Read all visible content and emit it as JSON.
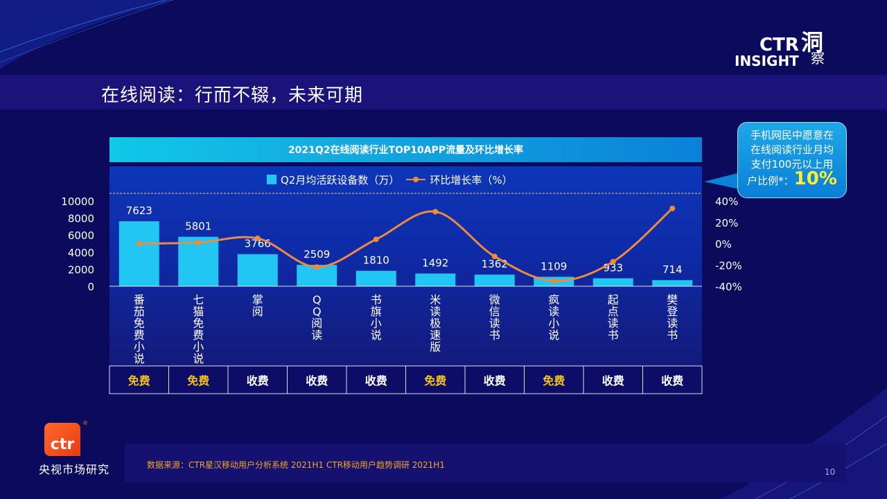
{
  "slide": {
    "title": "在线阅读：行而不辍，未来可期",
    "page_number": "10",
    "source": "数据来源：CTR星汉移动用户分析系统 2021H1    CTR移动用户趋势调研 2021H1"
  },
  "brand": {
    "ctr": "CTR",
    "insight": "INSIGHT",
    "dong": "洞",
    "cha": "察"
  },
  "logo": {
    "mark": "ctr",
    "name": "央视市场研究",
    "reg": "®"
  },
  "callout": {
    "line1": "手机网民中愿意在",
    "line2": "在线阅读行业月均",
    "line3": "支付100元以上用",
    "line4": "户比例*：",
    "value": "10%"
  },
  "chart_data": {
    "type": "bar",
    "title": "2021Q2在线阅读行业TOP10APP流量及环比增长率",
    "categories": [
      "番茄免费小说",
      "七猫免费小说",
      "掌阅",
      "QQ阅读",
      "书旗小说",
      "米读极速版",
      "微信读书",
      "疯读小说",
      "起点读书",
      "樊登读书"
    ],
    "series": [
      {
        "name": "Q2月均活跃设备数（万）",
        "type": "bar",
        "axis": "left",
        "color": "#21c6f3",
        "values": [
          7623,
          5801,
          3766,
          2509,
          1810,
          1492,
          1362,
          1109,
          933,
          714
        ]
      },
      {
        "name": "环比增长率（%）",
        "type": "line",
        "axis": "right",
        "color": "#f08a3c",
        "smooth": true,
        "values": [
          0,
          1,
          5,
          -22,
          4,
          30,
          -12,
          -35,
          -17,
          33
        ]
      }
    ],
    "y_left": {
      "min": 0,
      "max": 10000,
      "ticks": [
        "0",
        "2000",
        "4000",
        "6000",
        "8000",
        "10000"
      ]
    },
    "y_right": {
      "min": -40,
      "max": 40,
      "ticks": [
        "-40%",
        "-20%",
        "0%",
        "20%",
        "40%"
      ]
    },
    "legend": "top-center",
    "pricing": [
      "免费",
      "免费",
      "收费",
      "收费",
      "收费",
      "免费",
      "收费",
      "免费",
      "收费",
      "收费"
    ],
    "pricing_colors": {
      "免费": "#f5c518",
      "收费": "#ffffff"
    }
  }
}
